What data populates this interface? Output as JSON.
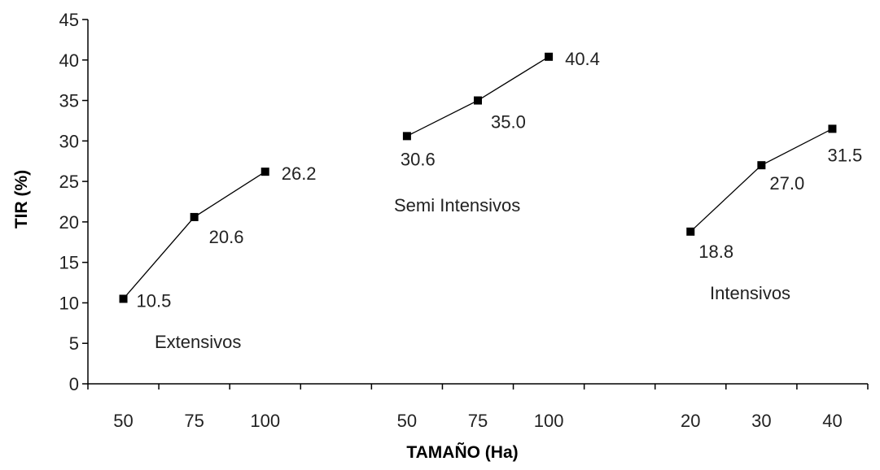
{
  "chart_data": {
    "type": "line",
    "xlabel": "TAMAÑO (Ha)",
    "ylabel": "TIR (%)",
    "ylim": [
      0,
      45
    ],
    "yticks": [
      "0",
      "5",
      "10",
      "15",
      "20",
      "25",
      "30",
      "35",
      "40",
      "45"
    ],
    "grid": false,
    "legend": "none",
    "categories": [
      "50",
      "75",
      "100",
      "",
      "50",
      "75",
      "100",
      "",
      "20",
      "30",
      "40"
    ],
    "series": [
      {
        "name": "Extensivos",
        "x": [
          "50",
          "75",
          "100"
        ],
        "values": [
          10.5,
          20.6,
          26.2
        ],
        "labels": [
          "10.5",
          "20.6",
          "26.2"
        ]
      },
      {
        "name": "Semi Intensivos",
        "x": [
          "50",
          "75",
          "100"
        ],
        "values": [
          30.6,
          35.0,
          40.4
        ],
        "labels": [
          "30.6",
          "35.0",
          "40.4"
        ]
      },
      {
        "name": "Intensivos",
        "x": [
          "20",
          "30",
          "40"
        ],
        "values": [
          18.8,
          27.0,
          31.5
        ],
        "labels": [
          "18.8",
          "27.0",
          "31.5"
        ]
      }
    ],
    "line_color": "#000000",
    "marker": "square"
  }
}
